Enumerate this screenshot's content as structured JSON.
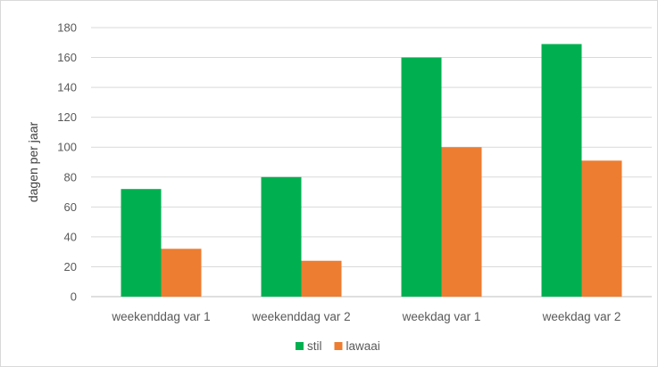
{
  "chart_data": {
    "type": "bar",
    "title": "",
    "xlabel": "",
    "ylabel": "dagen per jaar",
    "ylim": [
      0,
      180
    ],
    "yticks": [
      0,
      20,
      40,
      60,
      80,
      100,
      120,
      140,
      160,
      180
    ],
    "grid": true,
    "legend_position": "bottom",
    "categories": [
      "weekenddag var 1",
      "weekenddag var 2",
      "weekdag var 1",
      "weekdag var 2"
    ],
    "series": [
      {
        "name": "stil",
        "color": "#00B050",
        "values": [
          72,
          80,
          160,
          169
        ]
      },
      {
        "name": "lawaai",
        "color": "#ED7D31",
        "values": [
          32,
          24,
          100,
          91
        ]
      }
    ]
  }
}
